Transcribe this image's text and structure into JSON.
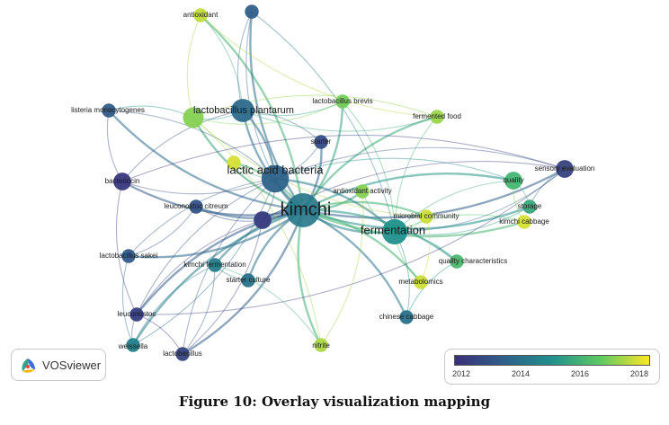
{
  "caption": "Figure 10: Overlay visualization mapping",
  "logo_text": "VOSviewer",
  "legend": {
    "ticks": [
      "2012",
      "2014",
      "2016",
      "2018"
    ],
    "colors": [
      "#3b2f7a",
      "#2f5f8a",
      "#21918c",
      "#5ec962",
      "#fde725"
    ]
  },
  "nodes": [
    {
      "id": "kimchi",
      "label": "kimchi",
      "year": 2014.4,
      "weight": 10
    },
    {
      "id": "lactic_acid_bacteria",
      "label": "lactic acid bacteria",
      "year": 2013.7,
      "weight": 6
    },
    {
      "id": "fermentation",
      "label": "fermentation",
      "year": 2015.2,
      "weight": 5
    },
    {
      "id": "lactobacillus_plantarum",
      "label": "lactobacillus plantarum",
      "year": 2014.0,
      "weight": 4
    },
    {
      "id": "antioxidant",
      "label": "antioxidant",
      "year": 2017.8,
      "weight": 1
    },
    {
      "id": "listeria_monocytogenes",
      "label": "listeria monocytogenes",
      "year": 2013.5,
      "weight": 1
    },
    {
      "id": "lactobacillus_brevis",
      "label": "lactobacillus brevis",
      "year": 2017.0,
      "weight": 1
    },
    {
      "id": "fermented_food",
      "label": "fermented food",
      "year": 2017.4,
      "weight": 1
    },
    {
      "id": "starter",
      "label": "starter",
      "year": 2013.0,
      "weight": 1
    },
    {
      "id": "bacteriocin",
      "label": "bacteriocin",
      "year": 2012.3,
      "weight": 2
    },
    {
      "id": "sensory_evaluation",
      "label": "sensory evaluation",
      "year": 2012.6,
      "weight": 2
    },
    {
      "id": "quality",
      "label": "quality",
      "year": 2016.2,
      "weight": 2
    },
    {
      "id": "antioxidant_activity",
      "label": "antioxidant activity",
      "year": 2017.2,
      "weight": 1
    },
    {
      "id": "leuconostoc_citreum",
      "label": "leuconostoc citreum",
      "year": 2013.2,
      "weight": 1
    },
    {
      "id": "storage",
      "label": "storage",
      "year": 2015.8,
      "weight": 1
    },
    {
      "id": "microbial_community",
      "label": "microbial community",
      "year": 2017.9,
      "weight": 1
    },
    {
      "id": "kimchi_cabbage",
      "label": "kimchi cabbage",
      "year": 2018.0,
      "weight": 1
    },
    {
      "id": "lactobacillus_sakei",
      "label": "lactobacillus sakei",
      "year": 2013.4,
      "weight": 1
    },
    {
      "id": "kimchi_fermentation",
      "label": "kimchi fermentation",
      "year": 2014.5,
      "weight": 1
    },
    {
      "id": "quality_characteristics",
      "label": "quality characteristics",
      "year": 2016.3,
      "weight": 1
    },
    {
      "id": "starter_culture",
      "label": "starter culture",
      "year": 2014.2,
      "weight": 1
    },
    {
      "id": "metabolomics",
      "label": "metabolomics",
      "year": 2017.9,
      "weight": 1
    },
    {
      "id": "leuconostoc",
      "label": "leuconostoc",
      "year": 2012.5,
      "weight": 1
    },
    {
      "id": "chinese_cabbage",
      "label": "chinese cabbage",
      "year": 2014.2,
      "weight": 1
    },
    {
      "id": "weissella",
      "label": "weissella",
      "year": 2014.6,
      "weight": 1
    },
    {
      "id": "lactobacillus",
      "label": "lactobacillus",
      "year": 2012.7,
      "weight": 1
    },
    {
      "id": "nitrite",
      "label": "nitrite",
      "year": 2017.6,
      "weight": 1
    },
    {
      "id": "unlabeled_top",
      "label": "",
      "year": 2013.6,
      "weight": 1
    },
    {
      "id": "unlabeled_yellow",
      "label": "",
      "year": 2018.0,
      "weight": 1
    },
    {
      "id": "unlabeled_lime",
      "label": "",
      "year": 2017.2,
      "weight": 3
    },
    {
      "id": "unlabeled_purple",
      "label": "",
      "year": 2012.4,
      "weight": 2
    }
  ],
  "edges": [
    [
      "kimchi",
      "lactic_acid_bacteria"
    ],
    [
      "kimchi",
      "fermentation"
    ],
    [
      "kimchi",
      "lactobacillus_plantarum"
    ],
    [
      "kimchi",
      "antioxidant"
    ],
    [
      "kimchi",
      "listeria_monocytogenes"
    ],
    [
      "kimchi",
      "lactobacillus_brevis"
    ],
    [
      "kimchi",
      "fermented_food"
    ],
    [
      "kimchi",
      "starter"
    ],
    [
      "kimchi",
      "bacteriocin"
    ],
    [
      "kimchi",
      "sensory_evaluation"
    ],
    [
      "kimchi",
      "quality"
    ],
    [
      "kimchi",
      "antioxidant_activity"
    ],
    [
      "kimchi",
      "leuconostoc_citreum"
    ],
    [
      "kimchi",
      "storage"
    ],
    [
      "kimchi",
      "microbial_community"
    ],
    [
      "kimchi",
      "kimchi_cabbage"
    ],
    [
      "kimchi",
      "lactobacillus_sakei"
    ],
    [
      "kimchi",
      "kimchi_fermentation"
    ],
    [
      "kimchi",
      "quality_characteristics"
    ],
    [
      "kimchi",
      "starter_culture"
    ],
    [
      "kimchi",
      "metabolomics"
    ],
    [
      "kimchi",
      "leuconostoc"
    ],
    [
      "kimchi",
      "chinese_cabbage"
    ],
    [
      "kimchi",
      "weissella"
    ],
    [
      "kimchi",
      "lactobacillus"
    ],
    [
      "kimchi",
      "nitrite"
    ],
    [
      "kimchi",
      "unlabeled_top"
    ],
    [
      "kimchi",
      "unlabeled_yellow"
    ],
    [
      "kimchi",
      "unlabeled_lime"
    ],
    [
      "kimchi",
      "unlabeled_purple"
    ],
    [
      "lactic_acid_bacteria",
      "fermentation"
    ],
    [
      "lactic_acid_bacteria",
      "lactobacillus_plantarum"
    ],
    [
      "lactic_acid_bacteria",
      "bacteriocin"
    ],
    [
      "lactic_acid_bacteria",
      "starter"
    ],
    [
      "lactic_acid_bacteria",
      "sensory_evaluation"
    ],
    [
      "lactic_acid_bacteria",
      "leuconostoc"
    ],
    [
      "lactic_acid_bacteria",
      "weissella"
    ],
    [
      "lactic_acid_bacteria",
      "lactobacillus"
    ],
    [
      "lactic_acid_bacteria",
      "unlabeled_top"
    ],
    [
      "lactic_acid_bacteria",
      "listeria_monocytogenes"
    ],
    [
      "lactic_acid_bacteria",
      "quality"
    ],
    [
      "lactic_acid_bacteria",
      "lactobacillus_sakei"
    ],
    [
      "fermentation",
      "quality"
    ],
    [
      "fermentation",
      "storage"
    ],
    [
      "fermentation",
      "kimchi_cabbage"
    ],
    [
      "fermentation",
      "microbial_community"
    ],
    [
      "fermentation",
      "quality_characteristics"
    ],
    [
      "fermentation",
      "metabolomics"
    ],
    [
      "fermentation",
      "chinese_cabbage"
    ],
    [
      "fermentation",
      "sensory_evaluation"
    ],
    [
      "fermentation",
      "fermented_food"
    ],
    [
      "fermentation",
      "lactobacillus_brevis"
    ],
    [
      "fermentation",
      "antioxidant_activity"
    ],
    [
      "lactobacillus_plantarum",
      "antioxidant"
    ],
    [
      "lactobacillus_plantarum",
      "unlabeled_lime"
    ],
    [
      "lactobacillus_plantarum",
      "bacteriocin"
    ],
    [
      "lactobacillus_plantarum",
      "starter"
    ],
    [
      "lactobacillus_plantarum",
      "fermented_food"
    ],
    [
      "lactobacillus_plantarum",
      "unlabeled_top"
    ],
    [
      "lactobacillus_plantarum",
      "lactobacillus_brevis"
    ],
    [
      "unlabeled_lime",
      "antioxidant"
    ],
    [
      "unlabeled_lime",
      "listeria_monocytogenes"
    ],
    [
      "unlabeled_lime",
      "fermented_food"
    ],
    [
      "unlabeled_lime",
      "microbial_community"
    ],
    [
      "unlabeled_lime",
      "nitrite"
    ],
    [
      "unlabeled_lime",
      "lactobacillus_brevis"
    ],
    [
      "bacteriocin",
      "sensory_evaluation"
    ],
    [
      "bacteriocin",
      "leuconostoc"
    ],
    [
      "bacteriocin",
      "listeria_monocytogenes"
    ],
    [
      "leuconostoc",
      "weissella"
    ],
    [
      "leuconostoc",
      "lactobacillus"
    ],
    [
      "leuconostoc",
      "sensory_evaluation"
    ],
    [
      "leuconostoc",
      "unlabeled_purple"
    ],
    [
      "leuconostoc_citreum",
      "unlabeled_purple"
    ],
    [
      "unlabeled_purple",
      "sensory_evaluation"
    ],
    [
      "unlabeled_purple",
      "lactic_acid_bacteria"
    ],
    [
      "weissella",
      "lactobacillus_sakei"
    ],
    [
      "lactobacillus",
      "kimchi_fermentation"
    ],
    [
      "starter_culture",
      "kimchi_fermentation"
    ],
    [
      "quality",
      "kimchi_cabbage"
    ],
    [
      "quality",
      "storage"
    ],
    [
      "sensory_evaluation",
      "storage"
    ],
    [
      "microbial_community",
      "metabolomics"
    ],
    [
      "nitrite",
      "antioxidant_activity"
    ],
    [
      "unlabeled_top",
      "fermentation"
    ],
    [
      "unlabeled_yellow",
      "lactic_acid_bacteria"
    ],
    [
      "chinese_cabbage",
      "quality_characteristics"
    ],
    [
      "antioxidant",
      "fermented_food"
    ],
    [
      "weissella",
      "kimchi_fermentation"
    ],
    [
      "lactobacillus",
      "unlabeled_purple"
    ],
    [
      "kimchi_fermentation",
      "nitrite"
    ],
    [
      "lactobacillus_sakei",
      "leuconostoc_citreum"
    ]
  ]
}
